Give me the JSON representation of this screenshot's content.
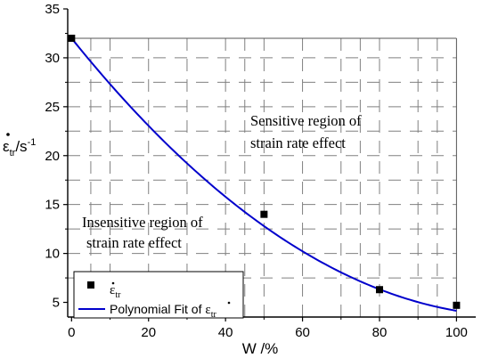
{
  "chart_data": {
    "type": "scatter",
    "xlabel": "W /%",
    "ylabel": {
      "base": "ε",
      "sub": "tr",
      "unit": "/s",
      "sup": "-1"
    },
    "xlim": [
      -1,
      105
    ],
    "ylim": [
      3.5,
      35
    ],
    "xticks": [
      0,
      20,
      40,
      60,
      80,
      100
    ],
    "yticks": [
      5,
      10,
      15,
      20,
      25,
      30,
      35
    ],
    "x_tick_labels": [
      "0",
      "20",
      "40",
      "60",
      "80",
      "100"
    ],
    "y_tick_labels": [
      "5",
      "10",
      "15",
      "20",
      "25",
      "30",
      "35"
    ],
    "series": [
      {
        "name": "ε̇tr",
        "kind": "points",
        "marker": "square",
        "color": "#000000",
        "x": [
          0,
          50,
          80,
          100
        ],
        "y": [
          32,
          14,
          6.3,
          4.7
        ]
      },
      {
        "name": "Polynomial Fit of ε̇tr",
        "kind": "line",
        "color": "#0000cc",
        "coefficients": [
          32,
          -0.4896,
          0.00211
        ],
        "domain": [
          0,
          100
        ]
      }
    ],
    "regions": {
      "sensitive": [
        "Sensitive region of",
        "strain rate effect"
      ],
      "insensitive": [
        "Insensitive region of",
        "strain rate effect"
      ]
    },
    "reference_lines": {
      "top": 32,
      "right": 100
    },
    "hatch": {
      "vertical_x": [
        5,
        10,
        20,
        30,
        40,
        45,
        50,
        60,
        70,
        75,
        80,
        90,
        95
      ],
      "horizontal_y": [
        7.5,
        10,
        12.5,
        15,
        17.5,
        20,
        22.5,
        25,
        27.5,
        30
      ]
    },
    "legend": {
      "placement": "bottom-left",
      "entries": [
        {
          "base": "ε",
          "sub": "tr",
          "prefix": ""
        },
        {
          "base": "ε",
          "sub": "tr",
          "prefix": "Polynomial Fit of "
        }
      ]
    },
    "grid": false
  }
}
